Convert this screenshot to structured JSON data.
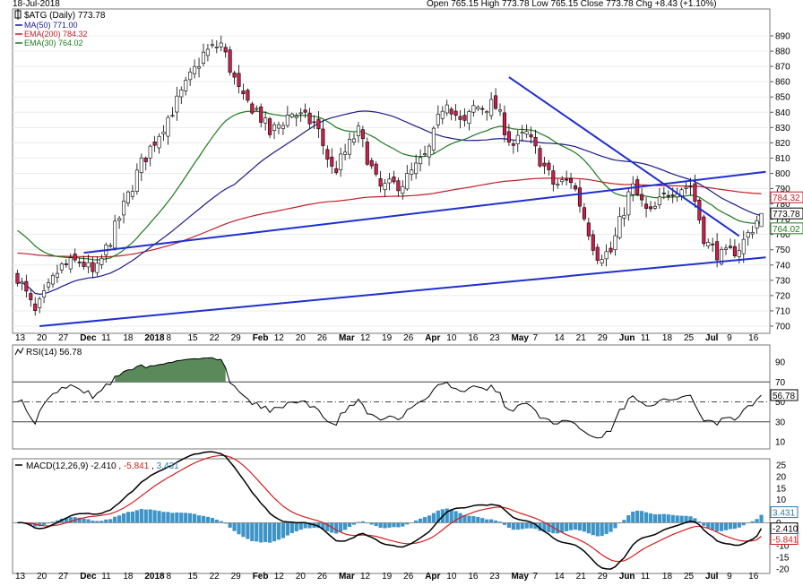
{
  "header": {
    "date": "18-Jul-2018",
    "ohlc_text": "Open 765.15  High 773.78  Low 765.15  Close 773.78  Chg +8.43 (+1.10%)",
    "symbol_label": "$ATG (Daily) 773.78",
    "legend": [
      {
        "text": "MA(50) 771.00",
        "color": "#1b1b8a"
      },
      {
        "text": "EMA(200) 784.32",
        "color": "#c0202a"
      },
      {
        "text": "EMA(30) 764.02",
        "color": "#1e7a1e"
      }
    ]
  },
  "colors": {
    "up_candle_fill": "#ffffff",
    "down_candle_fill": "#cc1f4a",
    "candle_outline": "#000000",
    "trendline": "#1f2fd0",
    "ma50": "#1b1b8a",
    "ema200": "#c0202a",
    "ema30": "#1e7a1e",
    "rsi_fill": "#5a8a5a",
    "macd_line": "#000000",
    "signal_line": "#d02020",
    "histogram": "#3d94c8"
  },
  "price_axis": {
    "ticks": [
      "890",
      "880",
      "870",
      "860",
      "850",
      "840",
      "830",
      "820",
      "810",
      "800",
      "790",
      "780",
      "770",
      "760",
      "750",
      "740",
      "730",
      "720",
      "710",
      "700"
    ],
    "tags": [
      {
        "text": "784.32",
        "value": 784.32,
        "color": "#c0202a"
      },
      {
        "text": "773.78",
        "value": 773.78,
        "color": "#000000"
      },
      {
        "text": "764.02",
        "value": 764.02,
        "color": "#1e7a1e"
      }
    ]
  },
  "x_axis": {
    "labels": [
      {
        "t": "13",
        "b": false
      },
      {
        "t": "20",
        "b": false
      },
      {
        "t": "27",
        "b": false
      },
      {
        "t": "Dec",
        "b": true
      },
      {
        "t": "11",
        "b": false
      },
      {
        "t": "18",
        "b": false
      },
      {
        "t": "2018",
        "b": true
      },
      {
        "t": "8",
        "b": false
      },
      {
        "t": "15",
        "b": false
      },
      {
        "t": "22",
        "b": false
      },
      {
        "t": "29",
        "b": false
      },
      {
        "t": "Feb",
        "b": true
      },
      {
        "t": "12",
        "b": false
      },
      {
        "t": "20",
        "b": false
      },
      {
        "t": "26",
        "b": false
      },
      {
        "t": "Mar",
        "b": true
      },
      {
        "t": "12",
        "b": false
      },
      {
        "t": "19",
        "b": false
      },
      {
        "t": "26",
        "b": false
      },
      {
        "t": "Apr",
        "b": true
      },
      {
        "t": "10",
        "b": false
      },
      {
        "t": "16",
        "b": false
      },
      {
        "t": "23",
        "b": false
      },
      {
        "t": "May",
        "b": true
      },
      {
        "t": "7",
        "b": false
      },
      {
        "t": "14",
        "b": false
      },
      {
        "t": "21",
        "b": false
      },
      {
        "t": "29",
        "b": false
      },
      {
        "t": "Jun",
        "b": true
      },
      {
        "t": "11",
        "b": false
      },
      {
        "t": "18",
        "b": false
      },
      {
        "t": "25",
        "b": false
      },
      {
        "t": "Jul",
        "b": true
      },
      {
        "t": "9",
        "b": false
      },
      {
        "t": "16",
        "b": false
      }
    ]
  },
  "rsi": {
    "label": "RSI(14) 56.78",
    "ticks": [
      "90",
      "70",
      "50",
      "30",
      "10"
    ],
    "current_tag": "56.78"
  },
  "macd": {
    "label_prefix": "MACD(12,26,9)",
    "macd_value": "-2.410",
    "signal_value": "-5.841",
    "hist_value": "3.431",
    "ticks": [
      "25",
      "20",
      "15",
      "10",
      "5",
      "0",
      "-5",
      "-10",
      "-15",
      "-20"
    ]
  },
  "chart_data": {
    "type": "candlestick",
    "title": "$ATG (Daily) 773.78",
    "ylim": [
      695,
      895
    ],
    "candle_count": 169,
    "trendlines": [
      {
        "name": "upper channel",
        "from": [
          15,
          748
        ],
        "to": [
          169,
          801
        ]
      },
      {
        "name": "lower channel",
        "from": [
          5,
          700
        ],
        "to": [
          169,
          745
        ]
      },
      {
        "name": "downtrend",
        "from": [
          111,
          863
        ],
        "to": [
          163,
          759
        ]
      }
    ],
    "indicators": {
      "ma50_last": 771.0,
      "ema200_last": 784.32,
      "ema30_last": 764.02,
      "rsi_last": 56.78,
      "rsi_levels": [
        70,
        50,
        30
      ],
      "macd_last": -2.41,
      "signal_last": -5.841,
      "histogram_last": 3.431
    },
    "waypoints": [
      [
        0,
        733
      ],
      [
        5,
        708
      ],
      [
        12,
        738
      ],
      [
        18,
        743
      ],
      [
        22,
        733
      ],
      [
        28,
        765
      ],
      [
        35,
        805
      ],
      [
        45,
        845
      ],
      [
        53,
        878
      ],
      [
        58,
        885
      ],
      [
        64,
        848
      ],
      [
        68,
        842
      ],
      [
        72,
        826
      ],
      [
        78,
        840
      ],
      [
        85,
        832
      ],
      [
        90,
        800
      ],
      [
        97,
        828
      ],
      [
        103,
        790
      ],
      [
        110,
        794
      ],
      [
        117,
        813
      ],
      [
        122,
        850
      ],
      [
        127,
        830
      ],
      [
        130,
        843
      ],
      [
        136,
        845
      ],
      [
        141,
        818
      ],
      [
        145,
        826
      ],
      [
        153,
        792
      ],
      [
        158,
        796
      ],
      [
        165,
        747
      ],
      [
        169,
        748
      ],
      [
        175,
        792
      ],
      [
        180,
        772
      ],
      [
        186,
        790
      ],
      [
        192,
        792
      ],
      [
        196,
        755
      ],
      [
        201,
        745
      ],
      [
        206,
        752
      ],
      [
        212,
        774
      ]
    ]
  }
}
